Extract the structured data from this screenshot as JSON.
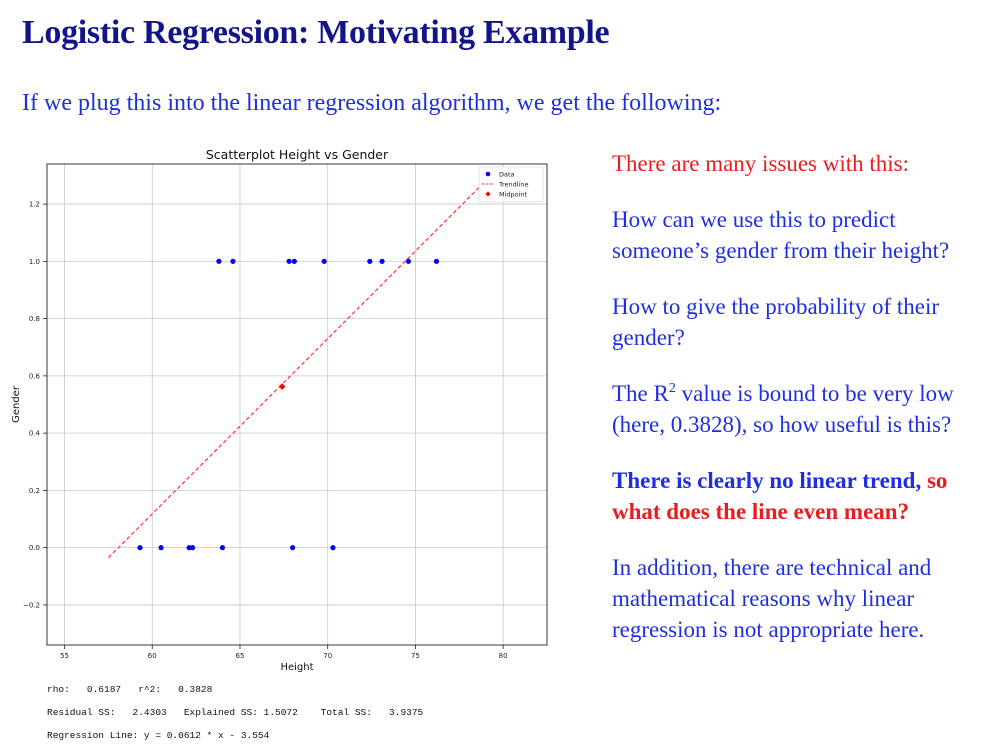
{
  "slide": {
    "title": "Logistic Regression: Motivating Example",
    "subtitle": "If we plug this into the linear regression algorithm, we get the following:"
  },
  "colors": {
    "title": "#14148a",
    "body_text": "#1f2fe0",
    "accent_red": "#e81e1e",
    "data_points": "#0000ff",
    "trendline": "#ff3333",
    "midpoint": "#ff0000"
  },
  "stats": {
    "line1": "rho:   0.6187   r^2:   0.3828",
    "line2": "Residual SS:   2.4303   Explained SS: 1.5072    Total SS:   3.9375",
    "line3": "Regression Line: y = 0.0612 * x - 3.554"
  },
  "issues": {
    "heading": "There are many issues with this:",
    "q1": "How can we use this to predict someone’s gender from their height?",
    "q2": "How to give the probability of their gender?",
    "q3_pre": "The R",
    "q3_sup": "2",
    "q3_post": " value is bound to be very low (here, 0.3828), so how useful is this?",
    "q4_blue": "There is clearly no linear trend,",
    "q4_red": " so what does the line even mean?",
    "q5": "In addition, there are technical and mathematical reasons why linear regression is not appropriate here."
  },
  "chart_data": {
    "type": "scatter",
    "title": "Scatterplot Height vs Gender",
    "xlabel": "Height",
    "ylabel": "Gender",
    "xlim": [
      54,
      82.5
    ],
    "ylim": [
      -0.34,
      1.34
    ],
    "xticks": [
      55,
      60,
      65,
      70,
      75,
      80
    ],
    "yticks": [
      -0.2,
      0.0,
      0.2,
      0.4,
      0.6,
      0.8,
      1.0,
      1.2
    ],
    "ytick_labels": [
      "−0.2",
      "0.0",
      "0.2",
      "0.4",
      "0.6",
      "0.8",
      "1.0",
      "1.2"
    ],
    "grid": true,
    "legend_position": "top-right",
    "legend": [
      "Data",
      "Trendline",
      "Midpoint"
    ],
    "data": {
      "x": [
        63.8,
        64.6,
        67.8,
        68.1,
        69.8,
        72.4,
        73.1,
        74.6,
        76.2,
        59.3,
        60.5,
        62.1,
        62.3,
        64.0,
        68.0,
        70.3
      ],
      "y": [
        1,
        1,
        1,
        1,
        1,
        1,
        1,
        1,
        1,
        0,
        0,
        0,
        0,
        0,
        0,
        0
      ]
    },
    "trendline": {
      "slope": 0.0612,
      "intercept": -3.554,
      "x_range": [
        57.5,
        79.6
      ]
    },
    "midpoint": {
      "x": 67.4,
      "y": 0.5625
    }
  }
}
